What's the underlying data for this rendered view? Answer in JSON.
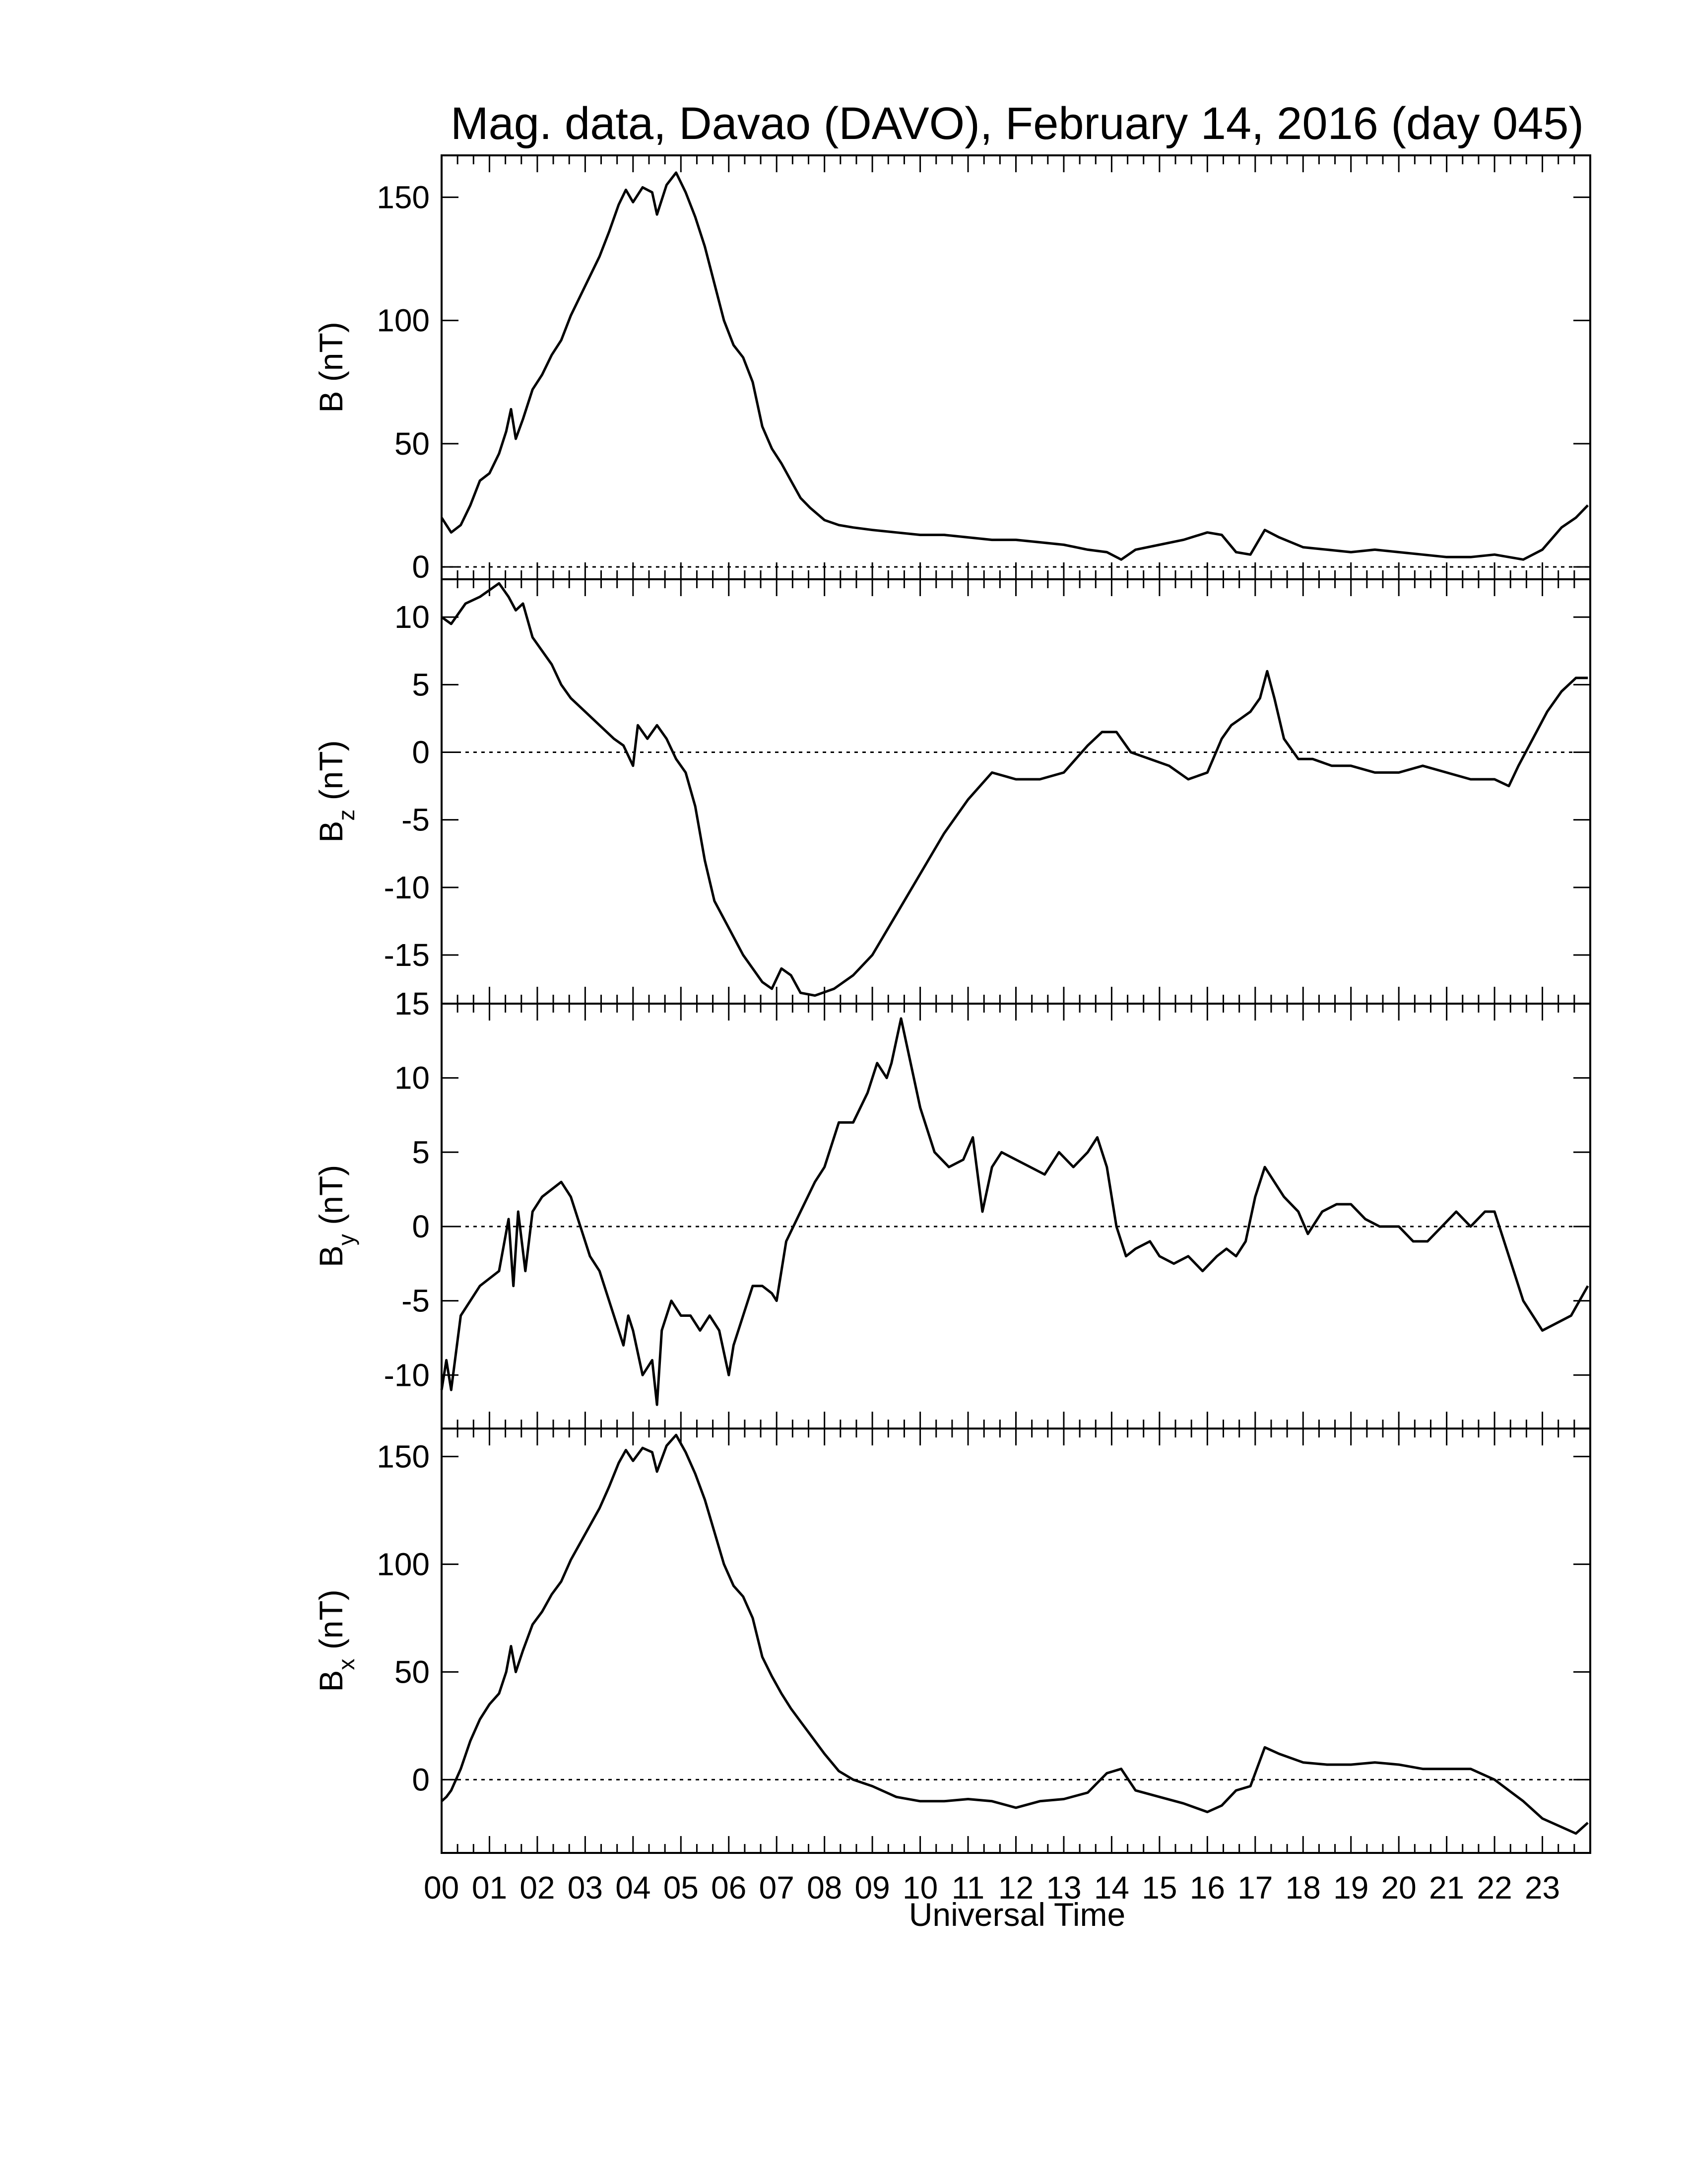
{
  "title": "Mag. data, Davao (DAVO), February 14, 2016 (day 045)",
  "xlabel": "Universal Time",
  "x_tick_labels": [
    "00",
    "01",
    "02",
    "03",
    "04",
    "05",
    "06",
    "07",
    "08",
    "09",
    "10",
    "11",
    "12",
    "13",
    "14",
    "15",
    "16",
    "17",
    "18",
    "19",
    "20",
    "21",
    "22",
    "23"
  ],
  "colors": {
    "line": "#000000",
    "zero_line": "#000000",
    "background": "#ffffff"
  },
  "chart_data": [
    {
      "type": "line",
      "ylabel": "B (nT)",
      "ylabel_main": "B",
      "ylabel_sub": "",
      "ylabel_unit": "(nT)",
      "ylim": [
        -5,
        167
      ],
      "yticks": [
        0,
        50,
        100,
        150
      ],
      "zero_line": true,
      "x_unit": "hours UT",
      "x": [
        0.0,
        0.2,
        0.4,
        0.6,
        0.8,
        1.0,
        1.2,
        1.35,
        1.45,
        1.55,
        1.7,
        1.9,
        2.1,
        2.3,
        2.5,
        2.7,
        2.9,
        3.1,
        3.3,
        3.5,
        3.7,
        3.85,
        4.0,
        4.2,
        4.4,
        4.5,
        4.7,
        4.9,
        5.1,
        5.3,
        5.5,
        5.7,
        5.9,
        6.1,
        6.3,
        6.5,
        6.7,
        6.9,
        7.1,
        7.3,
        7.5,
        7.7,
        8.0,
        8.3,
        8.6,
        9.0,
        9.5,
        10.0,
        10.5,
        11.0,
        11.5,
        12.0,
        12.5,
        13.0,
        13.5,
        13.9,
        14.2,
        14.5,
        15.0,
        15.5,
        16.0,
        16.3,
        16.6,
        16.9,
        17.2,
        17.5,
        18.0,
        18.5,
        19.0,
        19.5,
        20.0,
        20.5,
        21.0,
        21.5,
        22.0,
        22.3,
        22.6,
        23.0,
        23.4,
        23.7,
        23.95
      ],
      "y": [
        20,
        14,
        17,
        25,
        35,
        38,
        46,
        55,
        64,
        52,
        60,
        72,
        78,
        86,
        92,
        102,
        110,
        118,
        126,
        136,
        147,
        153,
        148,
        154,
        152,
        143,
        155,
        160,
        152,
        142,
        130,
        115,
        100,
        90,
        85,
        75,
        57,
        48,
        42,
        35,
        28,
        24,
        19,
        17,
        16,
        15,
        14,
        13,
        13,
        12,
        11,
        11,
        10,
        9,
        7,
        6,
        3,
        7,
        9,
        11,
        14,
        13,
        6,
        5,
        15,
        12,
        8,
        7,
        6,
        7,
        6,
        5,
        4,
        4,
        5,
        4,
        3,
        7,
        16,
        20,
        25
      ]
    },
    {
      "type": "line",
      "ylabel": "Bz (nT)",
      "ylabel_main": "B",
      "ylabel_sub": "z",
      "ylabel_unit": "(nT)",
      "ylim": [
        -18.6,
        12.8
      ],
      "yticks": [
        -15,
        -10,
        -5,
        0,
        5,
        10
      ],
      "ytick_labels": [
        "-15",
        "-10",
        "-5",
        "0",
        "5",
        "10"
      ],
      "zero_line": true,
      "x_unit": "hours UT",
      "x": [
        0.0,
        0.2,
        0.5,
        0.8,
        1.0,
        1.2,
        1.4,
        1.55,
        1.7,
        1.9,
        2.1,
        2.3,
        2.5,
        2.7,
        3.0,
        3.3,
        3.6,
        3.8,
        4.0,
        4.1,
        4.3,
        4.5,
        4.7,
        4.9,
        5.1,
        5.3,
        5.5,
        5.7,
        6.0,
        6.3,
        6.5,
        6.7,
        6.9,
        7.1,
        7.3,
        7.5,
        7.8,
        8.2,
        8.6,
        9.0,
        9.5,
        10.0,
        10.5,
        11.0,
        11.5,
        12.0,
        12.5,
        13.0,
        13.5,
        13.8,
        14.1,
        14.4,
        14.8,
        15.2,
        15.6,
        16.0,
        16.3,
        16.5,
        16.7,
        16.9,
        17.1,
        17.25,
        17.4,
        17.6,
        17.9,
        18.2,
        18.6,
        19.0,
        19.5,
        20.0,
        20.5,
        21.0,
        21.5,
        22.0,
        22.3,
        22.5,
        22.8,
        23.1,
        23.4,
        23.7,
        23.95
      ],
      "y": [
        10,
        9.5,
        11,
        11.5,
        12,
        12.5,
        11.5,
        10.5,
        11,
        8.5,
        7.5,
        6.5,
        5,
        4,
        3,
        2,
        1,
        0.5,
        -1,
        2,
        1,
        2,
        1,
        -0.5,
        -1.5,
        -4,
        -8,
        -11,
        -13,
        -15,
        -16,
        -17,
        -17.5,
        -16,
        -16.5,
        -17.8,
        -18,
        -17.5,
        -16.5,
        -15,
        -12,
        -9,
        -6,
        -3.5,
        -1.5,
        -2,
        -2,
        -1.5,
        0.5,
        1.5,
        1.5,
        0,
        -0.5,
        -1,
        -2,
        -1.5,
        1,
        2,
        2.5,
        3,
        4,
        6,
        4,
        1,
        -0.5,
        -0.5,
        -1,
        -1,
        -1.5,
        -1.5,
        -1,
        -1.5,
        -2,
        -2,
        -2.5,
        -1,
        1,
        3,
        4.5,
        5.5,
        5.5
      ]
    },
    {
      "type": "line",
      "ylabel": "By (nT)",
      "ylabel_main": "B",
      "ylabel_sub": "y",
      "ylabel_unit": "(nT)",
      "ylim": [
        -13.6,
        15
      ],
      "yticks": [
        -10,
        -5,
        0,
        5,
        10,
        15
      ],
      "ytick_labels": [
        "-10",
        "-5",
        "0",
        "5",
        "10",
        "15"
      ],
      "zero_line": true,
      "x_unit": "hours UT",
      "x": [
        0.0,
        0.1,
        0.2,
        0.4,
        0.6,
        0.8,
        1.0,
        1.2,
        1.4,
        1.5,
        1.6,
        1.75,
        1.9,
        2.1,
        2.3,
        2.5,
        2.7,
        2.9,
        3.1,
        3.3,
        3.5,
        3.7,
        3.8,
        3.9,
        4.0,
        4.2,
        4.4,
        4.5,
        4.6,
        4.8,
        5.0,
        5.2,
        5.4,
        5.6,
        5.8,
        6.0,
        6.1,
        6.3,
        6.5,
        6.7,
        6.9,
        7.0,
        7.2,
        7.5,
        7.8,
        8.0,
        8.3,
        8.6,
        8.9,
        9.1,
        9.3,
        9.4,
        9.6,
        9.8,
        10.0,
        10.3,
        10.6,
        10.9,
        11.1,
        11.3,
        11.5,
        11.7,
        12.0,
        12.3,
        12.6,
        12.9,
        13.2,
        13.5,
        13.7,
        13.9,
        14.1,
        14.3,
        14.5,
        14.8,
        15.0,
        15.3,
        15.6,
        15.9,
        16.2,
        16.4,
        16.6,
        16.8,
        17.0,
        17.2,
        17.4,
        17.6,
        17.9,
        18.1,
        18.4,
        18.7,
        19.0,
        19.3,
        19.6,
        20.0,
        20.3,
        20.6,
        20.9,
        21.2,
        21.5,
        21.8,
        22.0,
        22.2,
        22.4,
        22.6,
        22.8,
        23.0,
        23.3,
        23.6,
        23.95
      ],
      "y": [
        -11,
        -9,
        -11,
        -6,
        -5,
        -4,
        -3.5,
        -3,
        0.5,
        -4,
        1,
        -3,
        1,
        2,
        2.5,
        3,
        2,
        0,
        -2,
        -3,
        -5,
        -7,
        -8,
        -6,
        -7,
        -10,
        -9,
        -12,
        -7,
        -5,
        -6,
        -6,
        -7,
        -6,
        -7,
        -10,
        -8,
        -6,
        -4,
        -4,
        -4.5,
        -5,
        -1,
        1,
        3,
        4,
        7,
        7,
        9,
        11,
        10,
        11,
        14,
        11,
        8,
        5,
        4,
        4.5,
        6,
        1,
        4,
        5,
        4.5,
        4,
        3.5,
        5,
        4,
        5,
        6,
        4,
        0,
        -2,
        -1.5,
        -1,
        -2,
        -2.5,
        -2,
        -3,
        -2,
        -1.5,
        -2,
        -1,
        2,
        4,
        3,
        2,
        1,
        -0.5,
        1,
        1.5,
        1.5,
        0.5,
        0,
        0,
        -1,
        -1,
        0,
        1,
        0,
        1,
        1,
        -1,
        -3,
        -5,
        -6,
        -7,
        -6.5,
        -6,
        -4
      ]
    },
    {
      "type": "line",
      "ylabel": "Bx (nT)",
      "ylabel_main": "B",
      "ylabel_sub": "x",
      "ylabel_unit": "(nT)",
      "ylim": [
        -34,
        163
      ],
      "yticks": [
        0,
        50,
        100,
        150
      ],
      "zero_line": true,
      "x_unit": "hours UT",
      "x": [
        0.0,
        0.1,
        0.2,
        0.4,
        0.6,
        0.8,
        1.0,
        1.2,
        1.35,
        1.45,
        1.55,
        1.7,
        1.9,
        2.1,
        2.3,
        2.5,
        2.7,
        2.9,
        3.1,
        3.3,
        3.5,
        3.7,
        3.85,
        4.0,
        4.2,
        4.4,
        4.5,
        4.7,
        4.9,
        5.1,
        5.3,
        5.5,
        5.7,
        5.9,
        6.1,
        6.3,
        6.5,
        6.7,
        6.9,
        7.1,
        7.3,
        7.5,
        7.7,
        8.0,
        8.3,
        8.6,
        9.0,
        9.5,
        10.0,
        10.5,
        11.0,
        11.5,
        12.0,
        12.5,
        13.0,
        13.5,
        13.9,
        14.2,
        14.5,
        15.0,
        15.5,
        16.0,
        16.3,
        16.6,
        16.9,
        17.2,
        17.5,
        18.0,
        18.5,
        19.0,
        19.5,
        20.0,
        20.5,
        21.0,
        21.5,
        22.0,
        22.3,
        22.6,
        23.0,
        23.4,
        23.7,
        23.95
      ],
      "y": [
        -10,
        -8,
        -5,
        5,
        18,
        28,
        35,
        40,
        50,
        62,
        50,
        60,
        72,
        78,
        86,
        92,
        102,
        110,
        118,
        126,
        136,
        147,
        153,
        148,
        154,
        152,
        143,
        155,
        160,
        152,
        142,
        130,
        115,
        100,
        90,
        85,
        75,
        57,
        48,
        40,
        33,
        27,
        21,
        12,
        4,
        0,
        -3,
        -8,
        -10,
        -10,
        -9,
        -10,
        -13,
        -10,
        -9,
        -6,
        3,
        5,
        -5,
        -8,
        -11,
        -15,
        -12,
        -5,
        -3,
        15,
        12,
        8,
        7,
        7,
        8,
        7,
        5,
        5,
        5,
        0,
        -5,
        -10,
        -18,
        -22,
        -25,
        -20
      ]
    }
  ]
}
